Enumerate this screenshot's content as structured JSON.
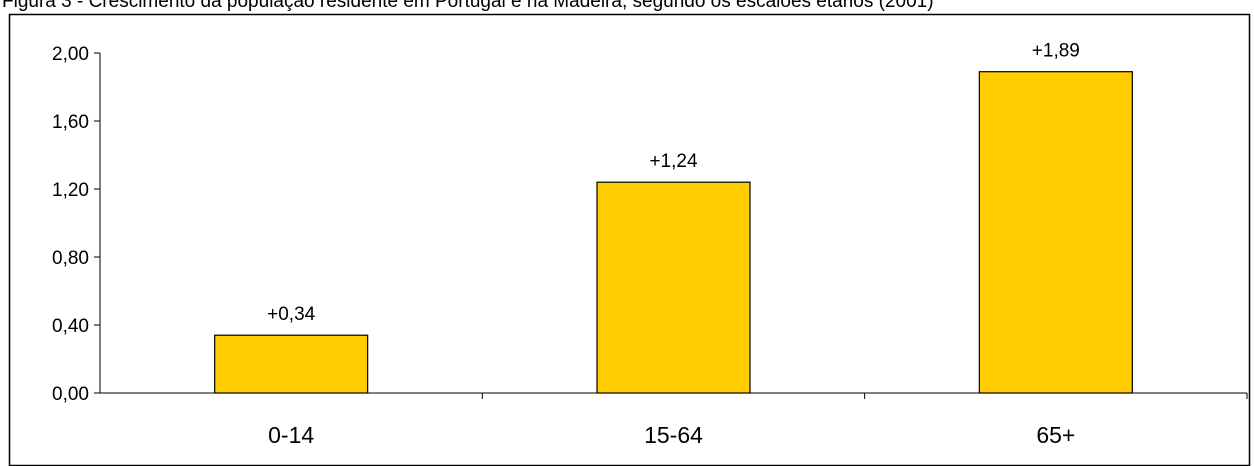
{
  "chart_data": {
    "type": "bar",
    "title": "Figura 3 - Crescimento da população residente em Portugal e na Madeira, segundo os escalões etários (2001)",
    "categories": [
      "0-14",
      "15-64",
      "65+"
    ],
    "values": [
      0.34,
      1.24,
      1.89
    ],
    "data_labels": [
      "+0,34",
      "+1,24",
      "+1,89"
    ],
    "y_ticks": [
      "0,00",
      "0,40",
      "0,80",
      "1,20",
      "1,60",
      "2,00"
    ],
    "ylim": [
      0,
      2.0
    ],
    "xlabel": "",
    "ylabel": "",
    "grid": false,
    "legend": "none",
    "bar_color": "#FFCC00",
    "bar_edge_color": "#000000"
  }
}
